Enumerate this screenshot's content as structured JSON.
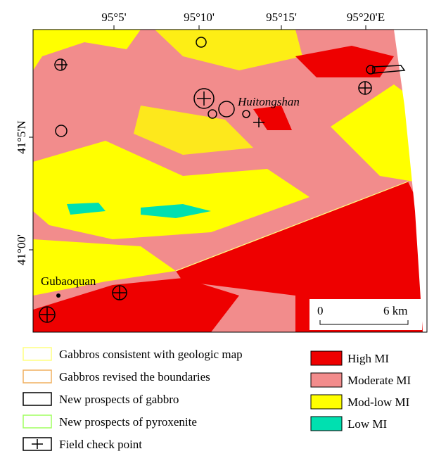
{
  "map": {
    "top_labels": [
      "95°5'",
      "95°10'",
      "95°15'",
      "95°20'E"
    ],
    "left_labels": [
      "41°5'N",
      "41°00'"
    ],
    "places": [
      "Huitongshan",
      "Gubaoquan"
    ],
    "scale": {
      "start": "0",
      "end": "6 km"
    }
  },
  "legend": {
    "left": [
      "Gabbros consistent with geologic map",
      "Gabbros revised the boundaries",
      "New prospects of gabbro",
      "New prospects of pyroxenite",
      "Field check point"
    ],
    "right": [
      "High MI",
      "Moderate MI",
      "Mod-low MI",
      "Low MI"
    ]
  }
}
